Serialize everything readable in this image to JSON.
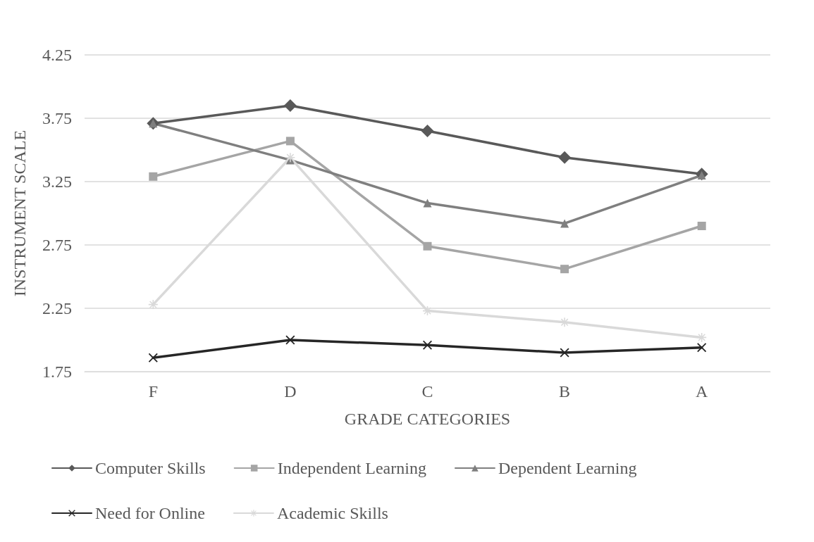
{
  "chart_data": {
    "type": "line",
    "xlabel": "GRADE CATEGORIES",
    "ylabel": "INSTRUMENT SCALE",
    "categories": [
      "F",
      "D",
      "C",
      "B",
      "A"
    ],
    "ylim": [
      1.75,
      4.25
    ],
    "yticks": [
      1.75,
      2.25,
      2.75,
      3.25,
      3.75,
      4.25
    ],
    "grid": "y",
    "legend": "bottom",
    "series": [
      {
        "name": "Computer Skills",
        "color": "#595959",
        "marker": "diamond",
        "values": [
          3.71,
          3.85,
          3.65,
          3.44,
          3.31
        ]
      },
      {
        "name": "Independent Learning",
        "color": "#a5a5a5",
        "marker": "square",
        "values": [
          3.29,
          3.57,
          2.74,
          2.56,
          2.9
        ]
      },
      {
        "name": "Dependent Learning",
        "color": "#7f7f7f",
        "marker": "triangle",
        "values": [
          3.71,
          3.42,
          3.08,
          2.92,
          3.3
        ]
      },
      {
        "name": "Need for Online",
        "color": "#262626",
        "marker": "cross",
        "values": [
          1.86,
          2.0,
          1.96,
          1.9,
          1.94
        ]
      },
      {
        "name": "Academic Skills",
        "color": "#d9d9d9",
        "marker": "star",
        "values": [
          2.28,
          3.44,
          2.23,
          2.14,
          2.02
        ]
      }
    ]
  }
}
